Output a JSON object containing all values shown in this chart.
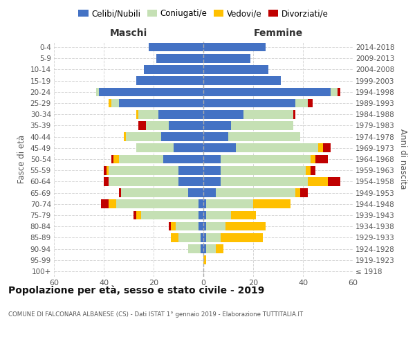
{
  "age_groups": [
    "100+",
    "95-99",
    "90-94",
    "85-89",
    "80-84",
    "75-79",
    "70-74",
    "65-69",
    "60-64",
    "55-59",
    "50-54",
    "45-49",
    "40-44",
    "35-39",
    "30-34",
    "25-29",
    "20-24",
    "15-19",
    "10-14",
    "5-9",
    "0-4"
  ],
  "birth_years": [
    "≤ 1918",
    "1919-1923",
    "1924-1928",
    "1929-1933",
    "1934-1938",
    "1939-1943",
    "1944-1948",
    "1949-1953",
    "1954-1958",
    "1959-1963",
    "1964-1968",
    "1969-1973",
    "1974-1978",
    "1979-1983",
    "1984-1988",
    "1989-1993",
    "1994-1998",
    "1999-2003",
    "2004-2008",
    "2009-2013",
    "2014-2018"
  ],
  "maschi_celibinubili": [
    0,
    0,
    1,
    1,
    2,
    2,
    2,
    6,
    10,
    10,
    16,
    12,
    17,
    14,
    18,
    34,
    42,
    27,
    24,
    19,
    22
  ],
  "maschi_coniugati": [
    0,
    0,
    5,
    9,
    9,
    23,
    33,
    27,
    28,
    28,
    18,
    15,
    14,
    9,
    8,
    3,
    1,
    0,
    0,
    0,
    0
  ],
  "maschi_vedovi": [
    0,
    0,
    0,
    3,
    2,
    2,
    3,
    0,
    0,
    1,
    2,
    0,
    1,
    0,
    1,
    1,
    0,
    0,
    0,
    0,
    0
  ],
  "maschi_divorziati": [
    0,
    0,
    0,
    0,
    1,
    1,
    3,
    1,
    2,
    1,
    1,
    0,
    0,
    3,
    0,
    0,
    0,
    0,
    0,
    0,
    0
  ],
  "femmine_celibinubili": [
    0,
    0,
    1,
    1,
    1,
    1,
    1,
    5,
    7,
    7,
    7,
    13,
    10,
    11,
    16,
    37,
    51,
    31,
    26,
    19,
    25
  ],
  "femmine_coniugate": [
    0,
    0,
    4,
    6,
    8,
    10,
    19,
    32,
    35,
    34,
    36,
    33,
    29,
    25,
    20,
    5,
    3,
    0,
    0,
    0,
    0
  ],
  "femmine_vedove": [
    0,
    1,
    3,
    17,
    16,
    10,
    15,
    2,
    8,
    2,
    2,
    2,
    0,
    0,
    0,
    0,
    0,
    0,
    0,
    0,
    0
  ],
  "femmine_divorziate": [
    0,
    0,
    0,
    0,
    0,
    0,
    0,
    3,
    5,
    2,
    5,
    3,
    0,
    0,
    1,
    2,
    1,
    0,
    0,
    0,
    0
  ],
  "color_celibinubili": "#4472c4",
  "color_coniugati": "#c5e0b4",
  "color_vedovi": "#ffc000",
  "color_divorziati": "#c00000",
  "title_main": "Popolazione per età, sesso e stato civile - 2019",
  "title_sub": "COMUNE DI FALCONARA ALBANESE (CS) - Dati ISTAT 1° gennaio 2019 - Elaborazione TUTTITALIA.IT",
  "ylabel_left": "Fasce di età",
  "ylabel_right": "Anni di nascita",
  "xlabel_left": "Maschi",
  "xlabel_right": "Femmine",
  "xlim": 60,
  "background_color": "#ffffff",
  "grid_color": "#cccccc"
}
